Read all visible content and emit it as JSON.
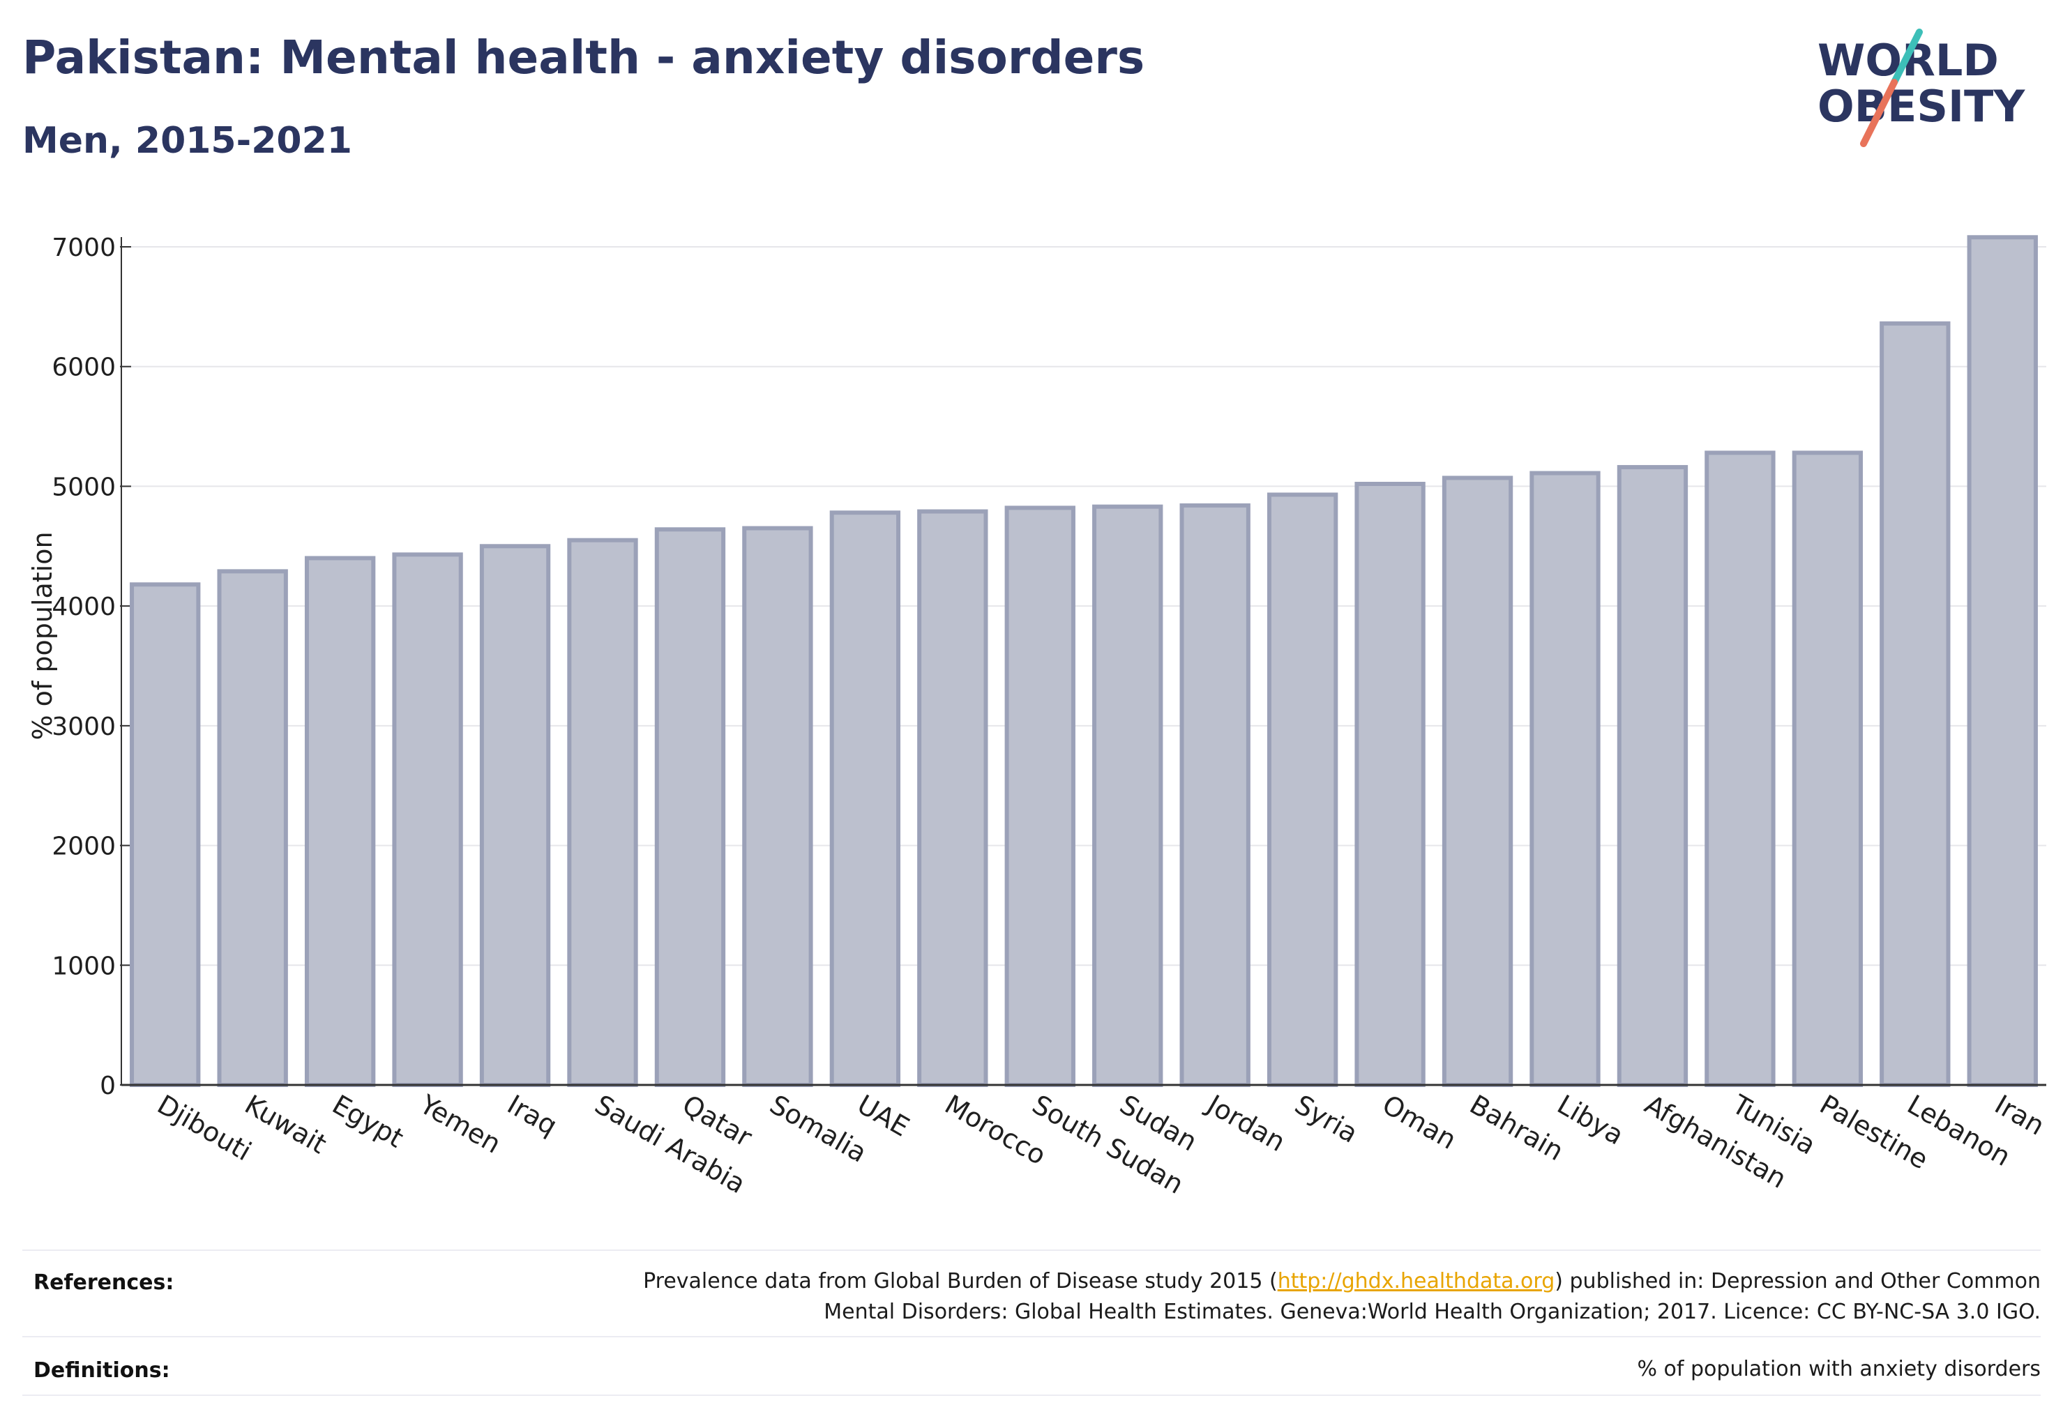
{
  "title": "Pakistan: Mental health - anxiety disorders",
  "subtitle": "Men, 2015-2021",
  "logo": {
    "line1": "WORLD",
    "line2": "OBESITY"
  },
  "colors": {
    "title": "#2b3560",
    "bar_fill": "#bcc0ce",
    "bar_stroke": "#9ba1b8",
    "grid": "#e6e6ea",
    "axis": "#333333",
    "link": "#e8a400",
    "logo_teal": "#3dbfb8",
    "logo_coral": "#e8735a"
  },
  "chart_data": {
    "type": "bar",
    "ylabel": "% of population",
    "xlabel": "",
    "ylim": [
      0,
      7200
    ],
    "yticks": [
      0,
      1000,
      2000,
      3000,
      4000,
      5000,
      6000,
      7000
    ],
    "grid": true,
    "categories": [
      "Djibouti",
      "Kuwait",
      "Egypt",
      "Yemen",
      "Iraq",
      "Saudi Arabia",
      "Qatar",
      "Somalia",
      "UAE",
      "Morocco",
      "South Sudan",
      "Sudan",
      "Jordan",
      "Syria",
      "Oman",
      "Bahrain",
      "Libya",
      "Afghanistan",
      "Tunisia",
      "Palestine",
      "Lebanon",
      "Iran"
    ],
    "values": [
      4180,
      4290,
      4400,
      4430,
      4500,
      4550,
      4640,
      4650,
      4780,
      4790,
      4820,
      4830,
      4840,
      4930,
      5020,
      5070,
      5110,
      5160,
      5280,
      5280,
      6360,
      7080
    ]
  },
  "references": {
    "label": "References:",
    "text_before": "Prevalence data from Global Burden of Disease study 2015 (",
    "link": "http://ghdx.healthdata.org",
    "text_after": ") published in: Depression and Other Common",
    "line2": "Mental Disorders: Global Health Estimates. Geneva:World Health Organization; 2017. Licence: CC BY-NC-SA 3.0 IGO."
  },
  "definitions": {
    "label": "Definitions:",
    "text": "% of population with anxiety disorders"
  }
}
